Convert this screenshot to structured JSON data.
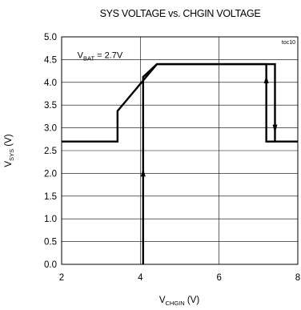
{
  "chart_data": {
    "type": "line",
    "title": "SYS VOLTAGE vs. CHGIN VOLTAGE",
    "tag": "toc10",
    "xlabel": {
      "main": "V",
      "sub": "CHGIN",
      "unit": " (V)"
    },
    "ylabel": {
      "main": "V",
      "sub": "SYS",
      "unit": " (V)"
    },
    "xlim": [
      2,
      8
    ],
    "ylim": [
      0,
      5
    ],
    "x_ticks": [
      2,
      4,
      6,
      8
    ],
    "x_tick_labels": [
      "2",
      "4",
      "6",
      "8"
    ],
    "y_ticks": [
      0,
      0.5,
      1,
      1.5,
      2,
      2.5,
      3,
      3.5,
      4,
      4.5,
      5
    ],
    "y_tick_labels": [
      "0.0",
      "0.5",
      "1.0",
      "1.5",
      "2.0",
      "2.5",
      "3.0",
      "3.5",
      "4.0",
      "4.5",
      "5.0"
    ],
    "grid": true,
    "annotation": {
      "main": "V",
      "sub": "BAT",
      "rest": " = 2.7V",
      "x": 2.4,
      "y": 4.53
    },
    "series": [
      {
        "points": [
          [
            2.0,
            2.7
          ],
          [
            3.42,
            2.7
          ],
          [
            3.42,
            3.37
          ],
          [
            4.42,
            4.4
          ],
          [
            7.42,
            4.4
          ],
          [
            7.42,
            2.7
          ],
          [
            8.0,
            2.7
          ]
        ]
      },
      {
        "points": [
          [
            4.07,
            0.0
          ],
          [
            4.07,
            4.12
          ],
          [
            4.42,
            4.4
          ],
          [
            7.2,
            4.4
          ],
          [
            7.2,
            2.7
          ],
          [
            7.42,
            2.7
          ]
        ]
      }
    ],
    "arrows": [
      {
        "x": 4.07,
        "y": 2.0,
        "dir": "up"
      },
      {
        "x": 7.2,
        "y": 4.05,
        "dir": "up"
      },
      {
        "x": 7.42,
        "y": 3.0,
        "dir": "down"
      }
    ]
  }
}
